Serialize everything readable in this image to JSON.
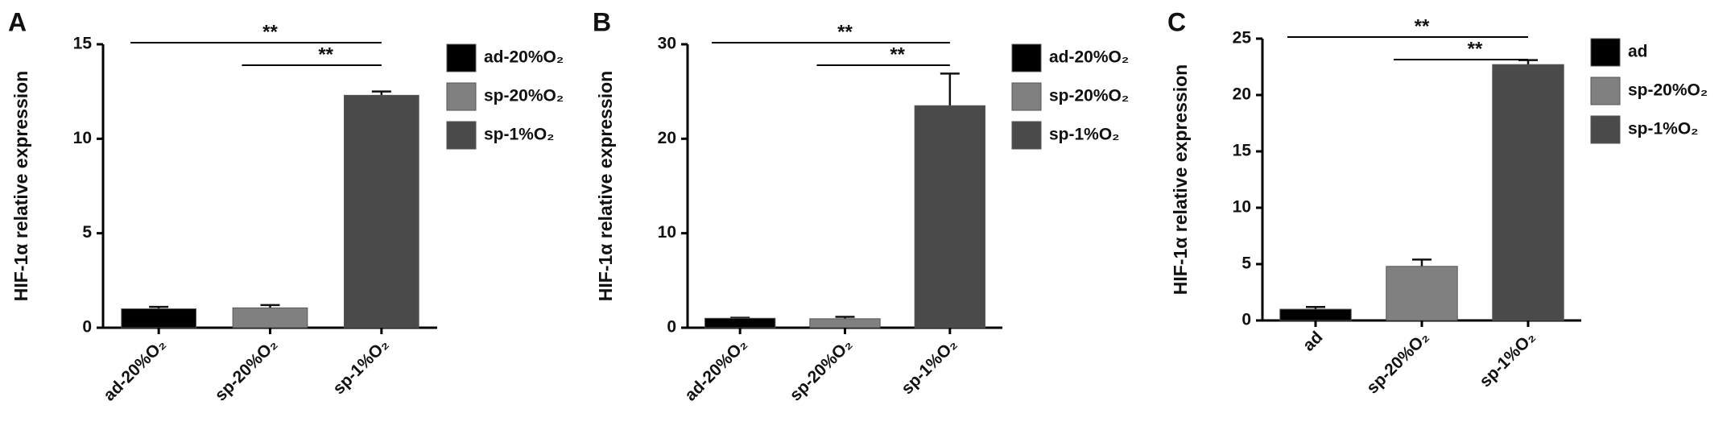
{
  "chart_data": [
    {
      "type": "bar",
      "panel": "A",
      "y_label": "HIF-1α relative expression",
      "categories": [
        "ad-20%O₂",
        "sp-20%O₂",
        "sp-1%O₂"
      ],
      "values": [
        1.0,
        1.05,
        12.3
      ],
      "errors": [
        0.1,
        0.15,
        0.2
      ],
      "colors": [
        "#000000",
        "#808080",
        "#4a4a4a"
      ],
      "ylim": [
        0,
        15
      ],
      "yticks": [
        0,
        5,
        10,
        15
      ],
      "annotations": [
        "**",
        "**"
      ]
    },
    {
      "type": "bar",
      "panel": "B",
      "y_label": "HIF-1α relative expression",
      "categories": [
        "ad-20%O₂",
        "sp-20%O₂",
        "sp-1%O₂"
      ],
      "values": [
        1.0,
        0.95,
        23.5
      ],
      "errors": [
        0.05,
        0.2,
        3.4
      ],
      "colors": [
        "#000000",
        "#808080",
        "#4a4a4a"
      ],
      "ylim": [
        0,
        30
      ],
      "yticks": [
        0,
        10,
        20,
        30
      ],
      "annotations": [
        "**",
        "**"
      ]
    },
    {
      "type": "bar",
      "panel": "C",
      "y_label": "HIF-1α relative expression",
      "categories": [
        "ad",
        "sp-20%O₂",
        "sp-1%O₂"
      ],
      "values": [
        1.0,
        4.8,
        22.7
      ],
      "errors": [
        0.2,
        0.6,
        0.4
      ],
      "colors": [
        "#000000",
        "#808080",
        "#4a4a4a"
      ],
      "ylim": [
        0,
        25
      ],
      "yticks": [
        0,
        5,
        10,
        15,
        20,
        25
      ],
      "annotations": [
        "**",
        "**"
      ]
    }
  ]
}
